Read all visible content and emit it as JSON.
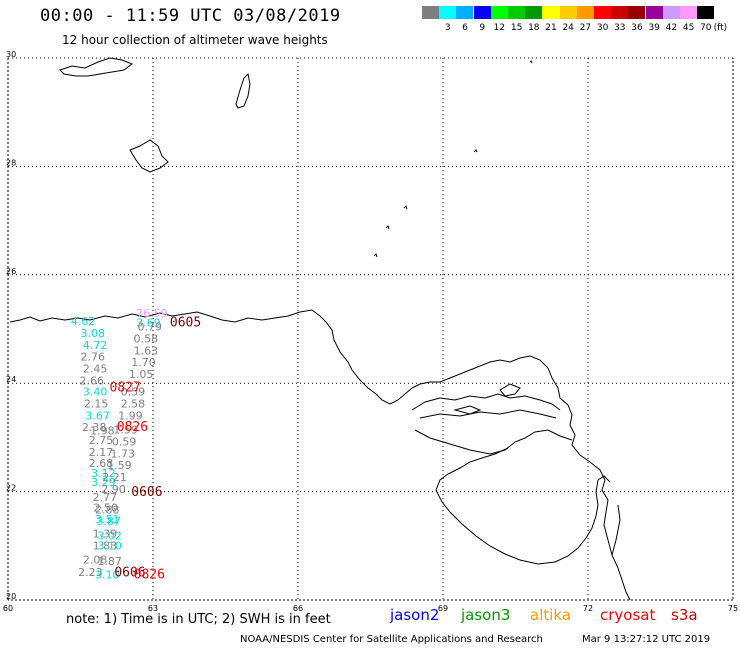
{
  "header": {
    "title": "00:00 - 11:59 UTC 03/08/2019",
    "subtitle": "12 hour collection of altimeter wave heights"
  },
  "color_scale": {
    "unit": "(ft)",
    "swatches": [
      {
        "label": "",
        "color": "#7f7f7f"
      },
      {
        "label": "3",
        "color": "#00ffff"
      },
      {
        "label": "6",
        "color": "#00b0ff"
      },
      {
        "label": "9",
        "color": "#0000ff"
      },
      {
        "label": "12",
        "color": "#00ff00"
      },
      {
        "label": "15",
        "color": "#00cc00"
      },
      {
        "label": "18",
        "color": "#009900"
      },
      {
        "label": "21",
        "color": "#ffff00"
      },
      {
        "label": "24",
        "color": "#ffcc00"
      },
      {
        "label": "27",
        "color": "#ff9900"
      },
      {
        "label": "30",
        "color": "#ff0000"
      },
      {
        "label": "33",
        "color": "#cc0000"
      },
      {
        "label": "36",
        "color": "#990000"
      },
      {
        "label": "39",
        "color": "#990099"
      },
      {
        "label": "42",
        "color": "#cc99ff"
      },
      {
        "label": "45",
        "color": "#ff99ff"
      },
      {
        "label": "70",
        "color": "#000000"
      }
    ]
  },
  "map": {
    "lon_range": [
      60,
      75
    ],
    "lat_range": [
      20,
      30
    ],
    "lon_ticks": [
      "60",
      "63",
      "66",
      "69",
      "72",
      "75"
    ],
    "lat_ticks": [
      "30",
      "28",
      "26",
      "24",
      "22",
      "20"
    ],
    "grid": "dotted",
    "coastline_color": "#000000"
  },
  "observations": [
    {
      "text": "4.62",
      "color": "#00e0e0",
      "lon": 61.3,
      "lat": 25.07
    },
    {
      "text": "3.08",
      "color": "#00e0e0",
      "lon": 61.5,
      "lat": 24.85
    },
    {
      "text": "4.72",
      "color": "#00e0e0",
      "lon": 61.55,
      "lat": 24.63
    },
    {
      "text": "2.76",
      "color": "#808080",
      "lon": 61.5,
      "lat": 24.42
    },
    {
      "text": "2.45",
      "color": "#808080",
      "lon": 61.55,
      "lat": 24.2
    },
    {
      "text": "2.66",
      "color": "#808080",
      "lon": 61.48,
      "lat": 23.98
    },
    {
      "text": "3.40",
      "color": "#00e0e0",
      "lon": 61.55,
      "lat": 23.77
    },
    {
      "text": "2.15",
      "color": "#808080",
      "lon": 61.57,
      "lat": 23.55
    },
    {
      "text": "3.67",
      "color": "#00e0e0",
      "lon": 61.6,
      "lat": 23.33
    },
    {
      "text": "2.38",
      "color": "#808080",
      "lon": 61.53,
      "lat": 23.12
    },
    {
      "text": "1.98",
      "color": "#808080",
      "lon": 61.7,
      "lat": 23.05
    },
    {
      "text": "2.75",
      "color": "#808080",
      "lon": 61.67,
      "lat": 22.88
    },
    {
      "text": "2.17",
      "color": "#808080",
      "lon": 61.67,
      "lat": 22.66
    },
    {
      "text": "2.68",
      "color": "#808080",
      "lon": 61.67,
      "lat": 22.45
    },
    {
      "text": "3.12",
      "color": "#00e0e0",
      "lon": 61.72,
      "lat": 22.27
    },
    {
      "text": "3.29",
      "color": "#00e0e0",
      "lon": 61.72,
      "lat": 22.1
    },
    {
      "text": "2.77",
      "color": "#808080",
      "lon": 61.75,
      "lat": 21.83
    },
    {
      "text": "2.50",
      "color": "#808080",
      "lon": 61.77,
      "lat": 21.63
    },
    {
      "text": "2.88",
      "color": "#808080",
      "lon": 61.8,
      "lat": 21.6
    },
    {
      "text": "3.51",
      "color": "#00e0e0",
      "lon": 61.8,
      "lat": 21.42
    },
    {
      "text": "3.87",
      "color": "#00e0e0",
      "lon": 61.83,
      "lat": 21.38
    },
    {
      "text": "1.39",
      "color": "#808080",
      "lon": 61.75,
      "lat": 21.15
    },
    {
      "text": "3.02",
      "color": "#00e0e0",
      "lon": 61.85,
      "lat": 21.12
    },
    {
      "text": "1.83",
      "color": "#808080",
      "lon": 61.75,
      "lat": 20.93
    },
    {
      "text": "3.10",
      "color": "#00e0e0",
      "lon": 61.85,
      "lat": 20.93
    },
    {
      "text": "2.08",
      "color": "#808080",
      "lon": 61.55,
      "lat": 20.67
    },
    {
      "text": "1.87",
      "color": "#808080",
      "lon": 61.85,
      "lat": 20.65
    },
    {
      "text": "2.23",
      "color": "#808080",
      "lon": 61.45,
      "lat": 20.44
    },
    {
      "text": "3.10",
      "color": "#00e0e0",
      "lon": 61.8,
      "lat": 20.4
    },
    {
      "text": "76.59",
      "color": "#ff99ff",
      "lon": 62.65,
      "lat": 25.22
    },
    {
      "text": "3.69",
      "color": "#00e0e0",
      "lon": 62.65,
      "lat": 25.05
    },
    {
      "text": "0.79",
      "color": "#808080",
      "lon": 62.68,
      "lat": 24.97
    },
    {
      "text": "0.58",
      "color": "#808080",
      "lon": 62.6,
      "lat": 24.75
    },
    {
      "text": "1.63",
      "color": "#808080",
      "lon": 62.6,
      "lat": 24.53
    },
    {
      "text": "1.70",
      "color": "#808080",
      "lon": 62.55,
      "lat": 24.32
    },
    {
      "text": "1.05",
      "color": "#808080",
      "lon": 62.5,
      "lat": 24.1
    },
    {
      "text": "0.59",
      "color": "#808080",
      "lon": 62.33,
      "lat": 23.77
    },
    {
      "text": "2.58",
      "color": "#808080",
      "lon": 62.33,
      "lat": 23.55
    },
    {
      "text": "1.99",
      "color": "#808080",
      "lon": 62.28,
      "lat": 23.33
    },
    {
      "text": "1.59",
      "color": "#808080",
      "lon": 62.18,
      "lat": 23.07
    },
    {
      "text": "0.59",
      "color": "#808080",
      "lon": 62.15,
      "lat": 22.85
    },
    {
      "text": "1.73",
      "color": "#808080",
      "lon": 62.12,
      "lat": 22.63
    },
    {
      "text": "1.59",
      "color": "#808080",
      "lon": 62.05,
      "lat": 22.42
    },
    {
      "text": "2.21",
      "color": "#808080",
      "lon": 61.95,
      "lat": 22.2
    },
    {
      "text": "2.90",
      "color": "#808080",
      "lon": 61.93,
      "lat": 21.97
    }
  ],
  "pass_labels": [
    {
      "text": "0605",
      "color": "#800000",
      "lon": 63.35,
      "lat": 25.05
    },
    {
      "text": "0827",
      "color": "#ff0000",
      "lon": 62.1,
      "lat": 23.85
    },
    {
      "text": "0826",
      "color": "#ff0000",
      "lon": 62.25,
      "lat": 23.12
    },
    {
      "text": "0606",
      "color": "#800000",
      "lon": 62.55,
      "lat": 21.92
    },
    {
      "text": "0606",
      "color": "#800000",
      "lon": 62.2,
      "lat": 20.43
    },
    {
      "text": "0826",
      "color": "#ff0000",
      "lon": 62.6,
      "lat": 20.4
    }
  ],
  "footer": {
    "note": "note: 1) Time is in UTC; 2) SWH is in feet",
    "satellites": [
      {
        "name": "jason2",
        "color": "#0000ff"
      },
      {
        "name": "jason3",
        "color": "#009900"
      },
      {
        "name": "altika",
        "color": "#ff9900"
      },
      {
        "name": "cryosat",
        "color": "#ff0000"
      },
      {
        "name": "s3a",
        "color": "#cc0000"
      }
    ],
    "credit": "NOAA/NESDIS Center for Satellite Applications and Research",
    "generated": "Mar  9 13:27:12 UTC 2019"
  }
}
